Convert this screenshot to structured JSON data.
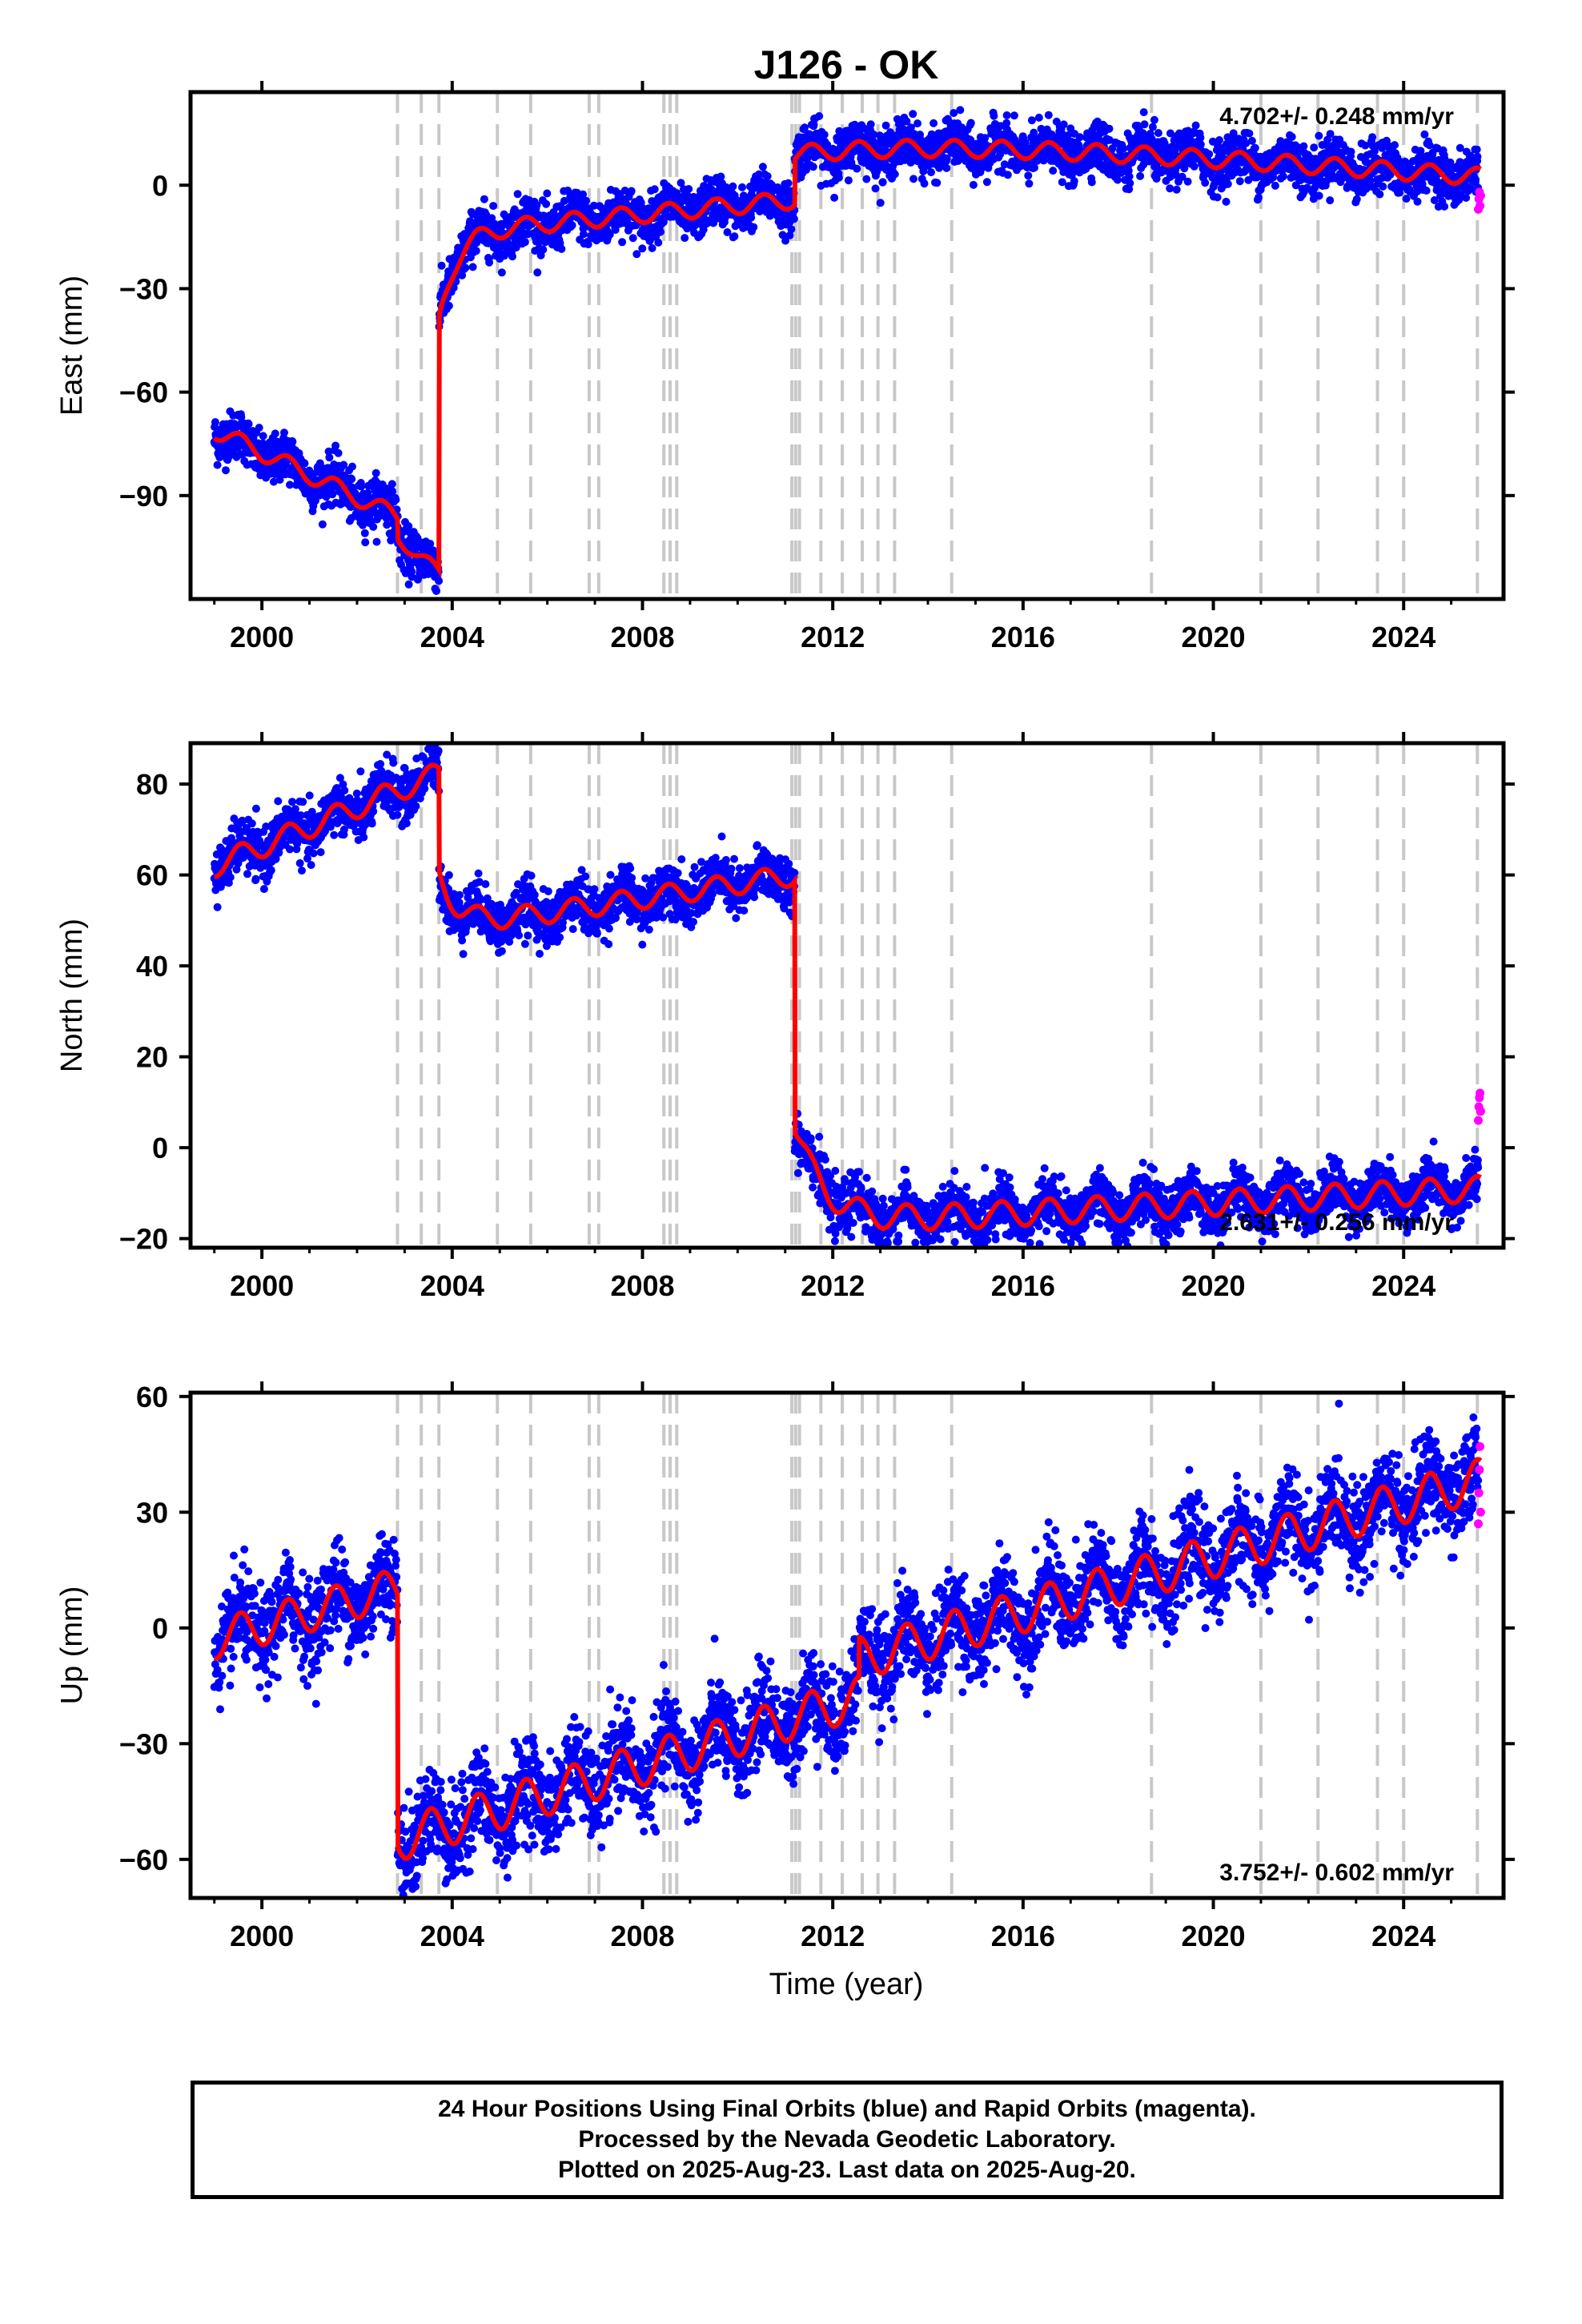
{
  "title": "J126 - OK",
  "xlabel": "Time (year)",
  "colors": {
    "final_orbits": "#0000ff",
    "rapid_orbits": "#ff00ff",
    "model": "#ff0000",
    "event_lines": "#c8c8c8",
    "axes": "#000000"
  },
  "caption": [
    "24 Hour Positions Using Final Orbits (blue) and Rapid Orbits (magenta).",
    "Processed by the Nevada Geodetic Laboratory.",
    "Plotted on 2025-Aug-23. Last data on 2025-Aug-20."
  ],
  "event_lines_year": [
    2002.85,
    2003.35,
    2003.72,
    2004.95,
    2005.65,
    2006.88,
    2007.08,
    2008.45,
    2008.58,
    2008.72,
    2011.14,
    2011.22,
    2011.3,
    2011.75,
    2012.2,
    2012.62,
    2012.95,
    2013.3,
    2014.5,
    2018.7,
    2021.0,
    2022.2,
    2023.45,
    2024.0,
    2025.55
  ],
  "chart_data": [
    {
      "type": "scatter",
      "name": "east",
      "ylabel": "East (mm)",
      "xlim": [
        1998.5,
        2026.1
      ],
      "ylim": [
        -120,
        27
      ],
      "xticks": [
        2000,
        2004,
        2008,
        2012,
        2016,
        2020,
        2024
      ],
      "xtick_labels": [
        "2000",
        "2004",
        "2008",
        "2012",
        "2016",
        "2020",
        "2024"
      ],
      "yticks": [
        0,
        -30,
        -60,
        -90
      ],
      "ytick_labels": [
        "0",
        "−30",
        "−60",
        "−90"
      ],
      "rate_label": "4.702+/- 0.248 mm/yr",
      "rate_label_position": "top-right",
      "model_segments": [
        {
          "from": 1999.0,
          "to": 2002.85,
          "y0": -71,
          "trend": -6.5,
          "amp": 2.5
        },
        {
          "from": 2002.85,
          "to": 2003.72,
          "y0": -102,
          "trend": -12,
          "amp": 2
        },
        {
          "from": 2003.72,
          "to": 2011.2,
          "y0": -39,
          "trend": 1.3,
          "amp": 2.5,
          "post_jump": 25,
          "post_tau": 0.35
        },
        {
          "from": 2011.2,
          "to": 2025.62,
          "y0": 9,
          "trend": -1.0,
          "amp": 2.5,
          "post_jump": 8,
          "post_tau": 3.5
        }
      ],
      "scatter": 3.5,
      "rapid_values": [
        -7,
        -4,
        -2,
        -6,
        -3
      ]
    },
    {
      "type": "scatter",
      "name": "north",
      "ylabel": "North (mm)",
      "xlim": [
        1998.5,
        2026.1
      ],
      "ylim": [
        -22,
        89
      ],
      "xticks": [
        2000,
        2004,
        2008,
        2012,
        2016,
        2020,
        2024
      ],
      "xtick_labels": [
        "2000",
        "2004",
        "2008",
        "2012",
        "2016",
        "2020",
        "2024"
      ],
      "yticks": [
        80,
        60,
        40,
        20,
        0,
        -20
      ],
      "ytick_labels": [
        "80",
        "60",
        "40",
        "20",
        "0",
        "−20"
      ],
      "rate_label": "2.631+/- 0.256 mm/yr",
      "rate_label_position": "bottom-right",
      "model_segments": [
        {
          "from": 1999.0,
          "to": 2003.72,
          "y0": 62,
          "trend": 4.3,
          "amp": 2.5
        },
        {
          "from": 2003.72,
          "to": 2011.2,
          "y0": 60,
          "trend": 1.6,
          "amp": 2.3,
          "post_jump": -12,
          "post_tau": 0.4
        },
        {
          "from": 2011.2,
          "to": 2025.62,
          "y0": 5,
          "trend": 0.55,
          "amp": 2.8,
          "post_jump": -22,
          "post_tau": 0.6
        }
      ],
      "scatter": 2.8,
      "rapid_values": [
        6,
        9,
        11,
        12,
        8
      ]
    },
    {
      "type": "scatter",
      "name": "up",
      "ylabel": "Up (mm)",
      "xlim": [
        1998.5,
        2026.1
      ],
      "ylim": [
        -70,
        61
      ],
      "xticks": [
        2000,
        2004,
        2008,
        2012,
        2016,
        2020,
        2024
      ],
      "xtick_labels": [
        "2000",
        "2004",
        "2008",
        "2012",
        "2016",
        "2020",
        "2024"
      ],
      "yticks": [
        60,
        30,
        0,
        -30,
        -60
      ],
      "ytick_labels": [
        "60",
        "30",
        "0",
        "−30",
        "−60"
      ],
      "rate_label": "3.752+/- 0.602 mm/yr",
      "rate_label_position": "bottom-right",
      "model_segments": [
        {
          "from": 1999.0,
          "to": 2002.85,
          "y0": -3,
          "trend": 3.5,
          "amp": 5
        },
        {
          "from": 2002.85,
          "to": 2012.55,
          "y0": -55,
          "trend": 3.8,
          "amp": 5.5
        },
        {
          "from": 2012.55,
          "to": 2025.62,
          "y0": -8,
          "trend": 3.55,
          "amp": 5.5
        }
      ],
      "scatter": 6.0,
      "rapid_values": [
        27,
        35,
        41,
        47,
        30
      ]
    }
  ]
}
